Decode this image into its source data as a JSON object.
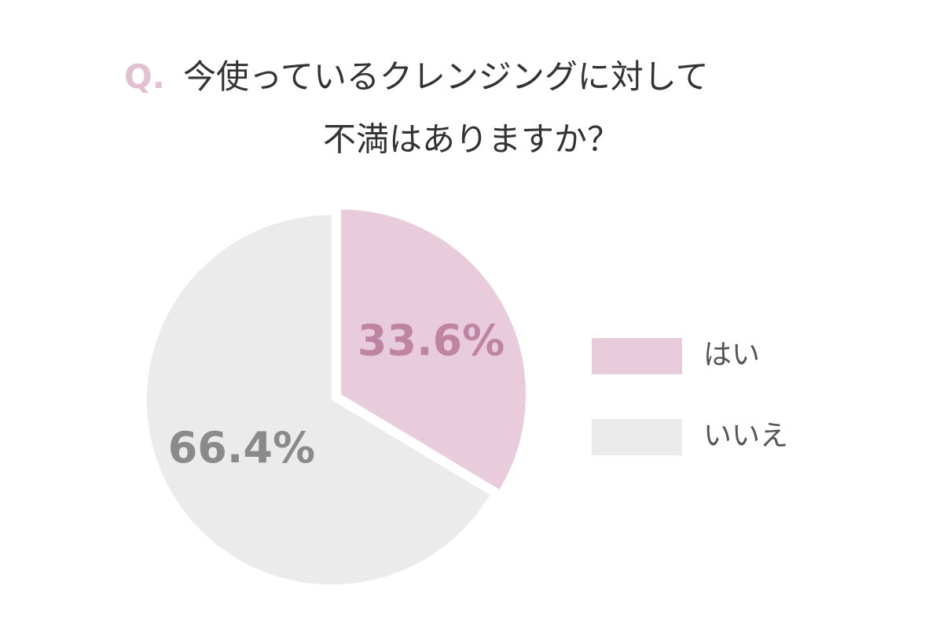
{
  "chart_data": {
    "type": "pie",
    "title_marker": "Q.",
    "title": [
      "今使っているクレンジングに対して",
      "不満はありますか？"
    ],
    "categories": [
      "はい",
      "いいえ"
    ],
    "values": [
      33.6,
      66.4
    ],
    "value_labels": [
      "33.6%",
      "66.4%"
    ],
    "colors": [
      "#e9ccdb",
      "#ebebeb"
    ],
    "label_colors": [
      "#c084a3",
      "#8a8a8a"
    ],
    "start_angle": 0,
    "direction": "clockwise",
    "legend": "right"
  }
}
